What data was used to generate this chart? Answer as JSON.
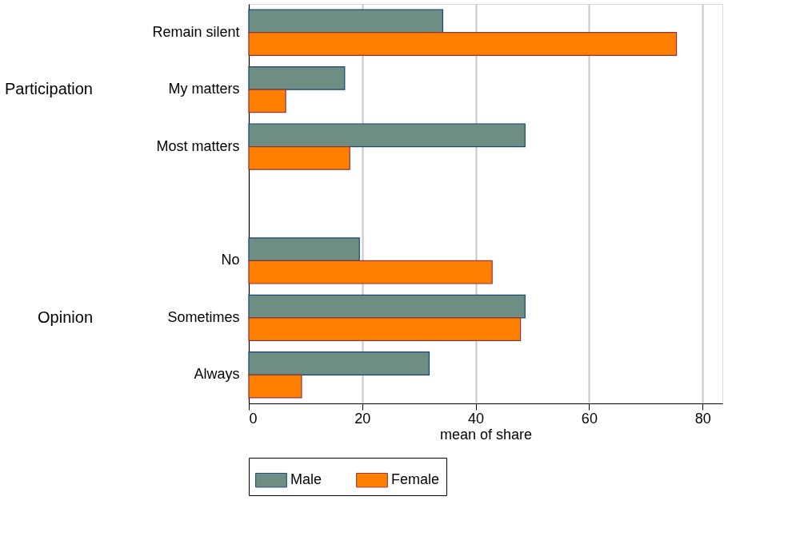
{
  "chart_data": {
    "type": "bar",
    "orientation": "horizontal",
    "categories": [
      "Remain silent",
      "My matters",
      "Most matters",
      null,
      "No",
      "Sometimes",
      "Always"
    ],
    "series": [
      {
        "name": "Male",
        "color": "#6e8e84",
        "values": [
          34.2,
          16.9,
          48.7,
          null,
          19.5,
          48.7,
          31.8
        ]
      },
      {
        "name": "Female",
        "color": "#ff7f00",
        "values": [
          75.4,
          6.5,
          17.8,
          null,
          42.9,
          47.9,
          9.3
        ]
      }
    ],
    "xlabel": "mean of share",
    "xlim": [
      0,
      83.5
    ],
    "xticks": [
      0,
      20,
      40,
      60,
      80
    ],
    "grid": "x",
    "legend": "bottom",
    "annotations": [
      "Participation",
      "Opinion"
    ]
  }
}
